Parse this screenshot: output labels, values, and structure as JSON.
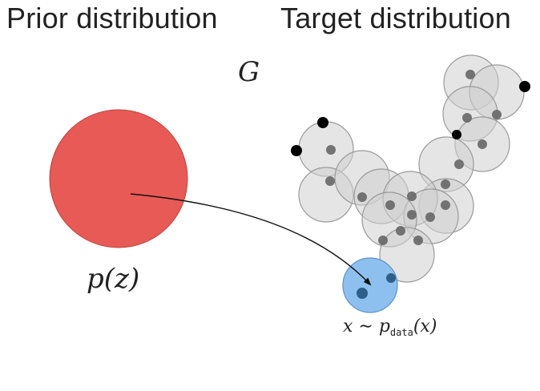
{
  "headings": {
    "prior": "Prior distribution",
    "target": "Target distribution"
  },
  "labels": {
    "generator": "G",
    "prior_expr": "p(z)",
    "sample_expr_prefix": "x ∼ p",
    "sample_expr_sub": "data",
    "sample_expr_suffix": "(x)"
  },
  "colors": {
    "prior_circle": "#e85a55",
    "sample_circle": "#8ec0ef",
    "cluster_circle": "#d0d0d0",
    "cluster_dot": "#666666",
    "outlier_dot": "#000000",
    "arrow": "#111111"
  }
}
